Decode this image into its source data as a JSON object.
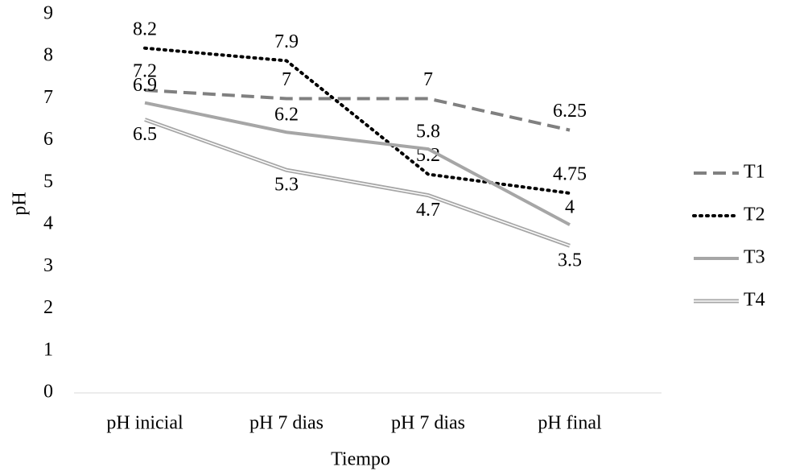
{
  "chart_data": {
    "type": "line",
    "x_label": "Tiempo",
    "y_label": "pH",
    "categories": [
      "pH inicial",
      "pH 7 dias",
      "pH 7 dias",
      "pH final"
    ],
    "series": [
      {
        "name": "T1",
        "color": "#808080",
        "style": "dashed",
        "values": [
          7.2,
          7,
          7,
          6.25
        ]
      },
      {
        "name": "T2",
        "color": "#000000",
        "style": "dotted",
        "values": [
          8.2,
          7.9,
          5.2,
          4.75
        ]
      },
      {
        "name": "T3",
        "color": "#a6a6a6",
        "style": "solid",
        "values": [
          6.9,
          6.2,
          5.8,
          4
        ]
      },
      {
        "name": "T4",
        "color": "#a6a6a6",
        "style": "double",
        "values": [
          6.5,
          5.3,
          4.7,
          3.5
        ]
      }
    ],
    "ylim": [
      0,
      9
    ],
    "yticks": [
      0,
      1,
      2,
      3,
      4,
      5,
      6,
      7,
      8,
      9
    ],
    "grid": false,
    "legend": "right"
  }
}
